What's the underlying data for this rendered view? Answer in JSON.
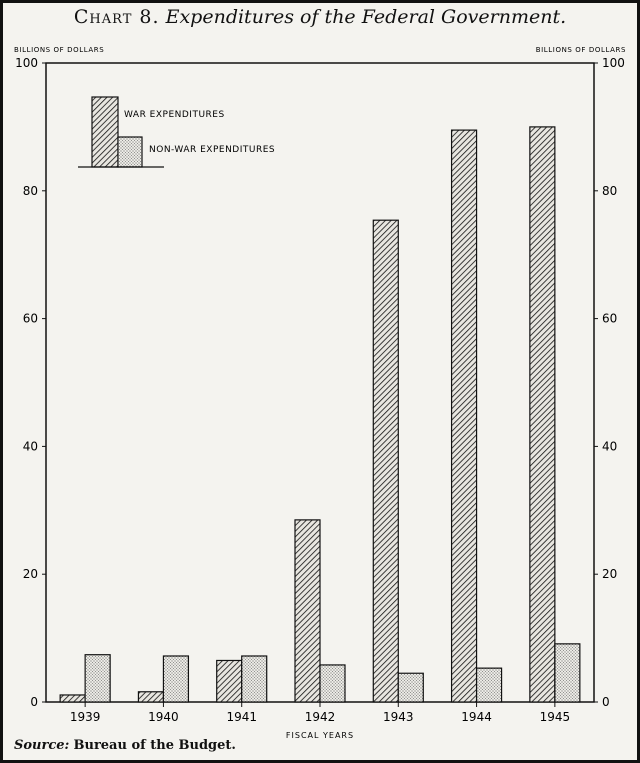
{
  "title": {
    "lead": "Chart 8.",
    "rest": "Expenditures of the Federal Government."
  },
  "source": {
    "label": "Source:",
    "text": "Bureau of the Budget."
  },
  "chart_data": {
    "type": "bar",
    "categories": [
      "1939",
      "1940",
      "1941",
      "1942",
      "1943",
      "1944",
      "1945"
    ],
    "series": [
      {
        "name": "WAR EXPENDITURES",
        "values": [
          1.1,
          1.6,
          6.5,
          28.5,
          75.4,
          89.5,
          90.0
        ],
        "fill": "hatched"
      },
      {
        "name": "NON-WAR EXPENDITURES",
        "values": [
          7.4,
          7.2,
          7.2,
          5.8,
          4.5,
          5.3,
          9.1
        ],
        "fill": "stippled"
      }
    ],
    "xlabel": "FISCAL YEARS",
    "ylabel_left": "BILLIONS OF DOLLARS",
    "ylabel_right": "BILLIONS OF DOLLARS",
    "ylim": [
      0,
      100
    ],
    "yticks": [
      0,
      20,
      40,
      60,
      80,
      100
    ],
    "legend_position": "top-left",
    "grid": false,
    "colors": {
      "ink": "#111111",
      "paper": "#f4f3ef",
      "hatch_bg": "#e8e6e0",
      "stipple_bg": "#ecebe6"
    }
  }
}
